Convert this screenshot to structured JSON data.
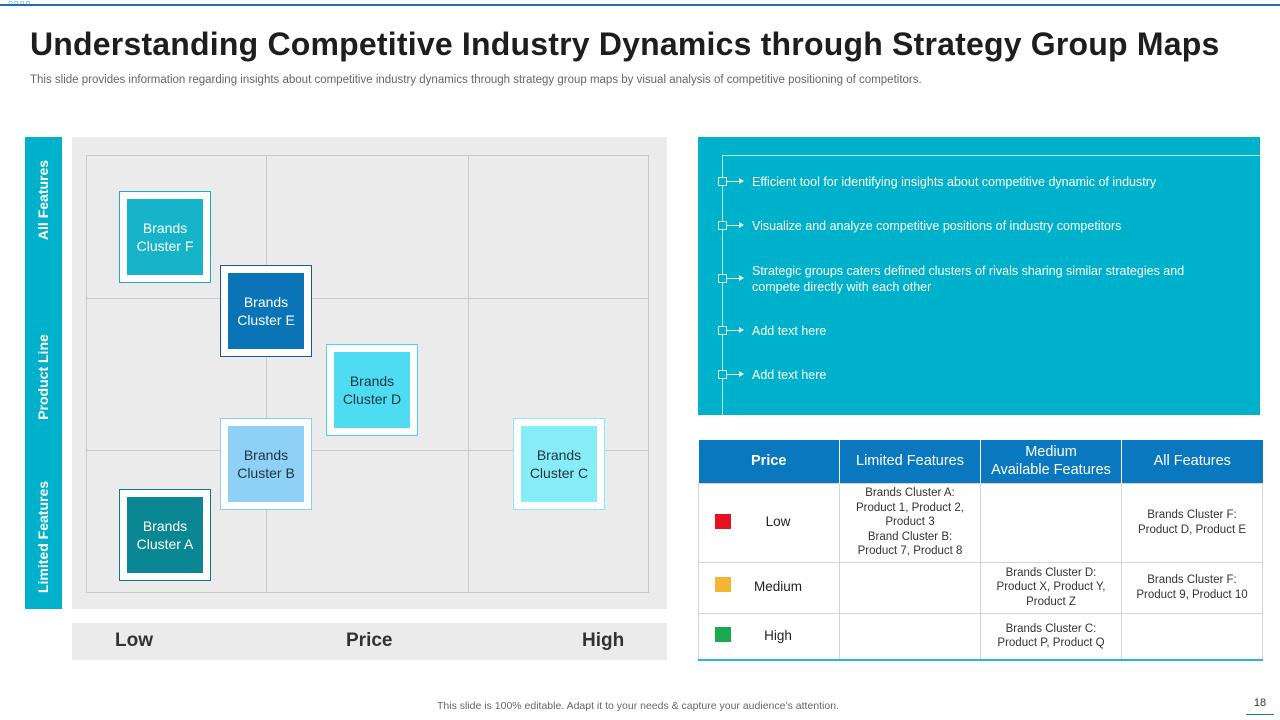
{
  "slide": {
    "title": "Understanding Competitive Industry Dynamics through Strategy Group Maps",
    "subtitle": "This slide provides information regarding insights about competitive industry dynamics through strategy group maps by visual analysis of competitive positioning of competitors.",
    "footer": "This slide is 100% editable. Adapt it to your needs & capture your audience’s attention.",
    "page_number": "18"
  },
  "map": {
    "y_labels": {
      "top": "All Features",
      "middle": "Product Line",
      "bottom": "Limited Features"
    },
    "x_labels": {
      "left": "Low",
      "center": "Price",
      "right": "High"
    },
    "clusters": {
      "f": {
        "line1": "Brands",
        "line2": "Cluster F"
      },
      "e": {
        "line1": "Brands",
        "line2": "Cluster E"
      },
      "d": {
        "line1": "Brands",
        "line2": "Cluster D"
      },
      "b": {
        "line1": "Brands",
        "line2": "Cluster B"
      },
      "c": {
        "line1": "Brands",
        "line2": "Cluster C"
      },
      "a": {
        "line1": "Brands",
        "line2": "Cluster A"
      }
    }
  },
  "info": {
    "bullets": [
      "Efficient tool for identifying insights about competitive dynamic of industry",
      "Visualize and analyze competitive positions of industry competitors",
      "Strategic groups caters defined clusters of rivals sharing similar strategies and compete directly with each other",
      "Add text here",
      "Add text here"
    ]
  },
  "table": {
    "headers": {
      "price": "Price",
      "limited": "Limited Features",
      "medium_line1": "Medium",
      "medium_line2": "Available Features",
      "all": "All Features"
    },
    "rows": [
      {
        "price": "Low",
        "swatch_color": "#e8101f",
        "limited": [
          "Brands Cluster A:",
          "Product 1, Product 2,",
          "Product 3",
          "Brand Cluster B:",
          "Product 7, Product 8"
        ],
        "medium": [],
        "all": [
          "Brands Cluster F:",
          "Product D, Product E"
        ]
      },
      {
        "price": "Medium",
        "swatch_color": "#f2b632",
        "limited": [],
        "medium": [
          "Brands Cluster D:",
          "Product X, Product Y,",
          "Product Z"
        ],
        "all": [
          "Brands Cluster F:",
          "Product 9, Product 10"
        ]
      },
      {
        "price": "High",
        "swatch_color": "#1aa94f",
        "limited": [],
        "medium": [
          "Brands Cluster C:",
          "Product P, Product Q"
        ],
        "all": []
      }
    ]
  }
}
